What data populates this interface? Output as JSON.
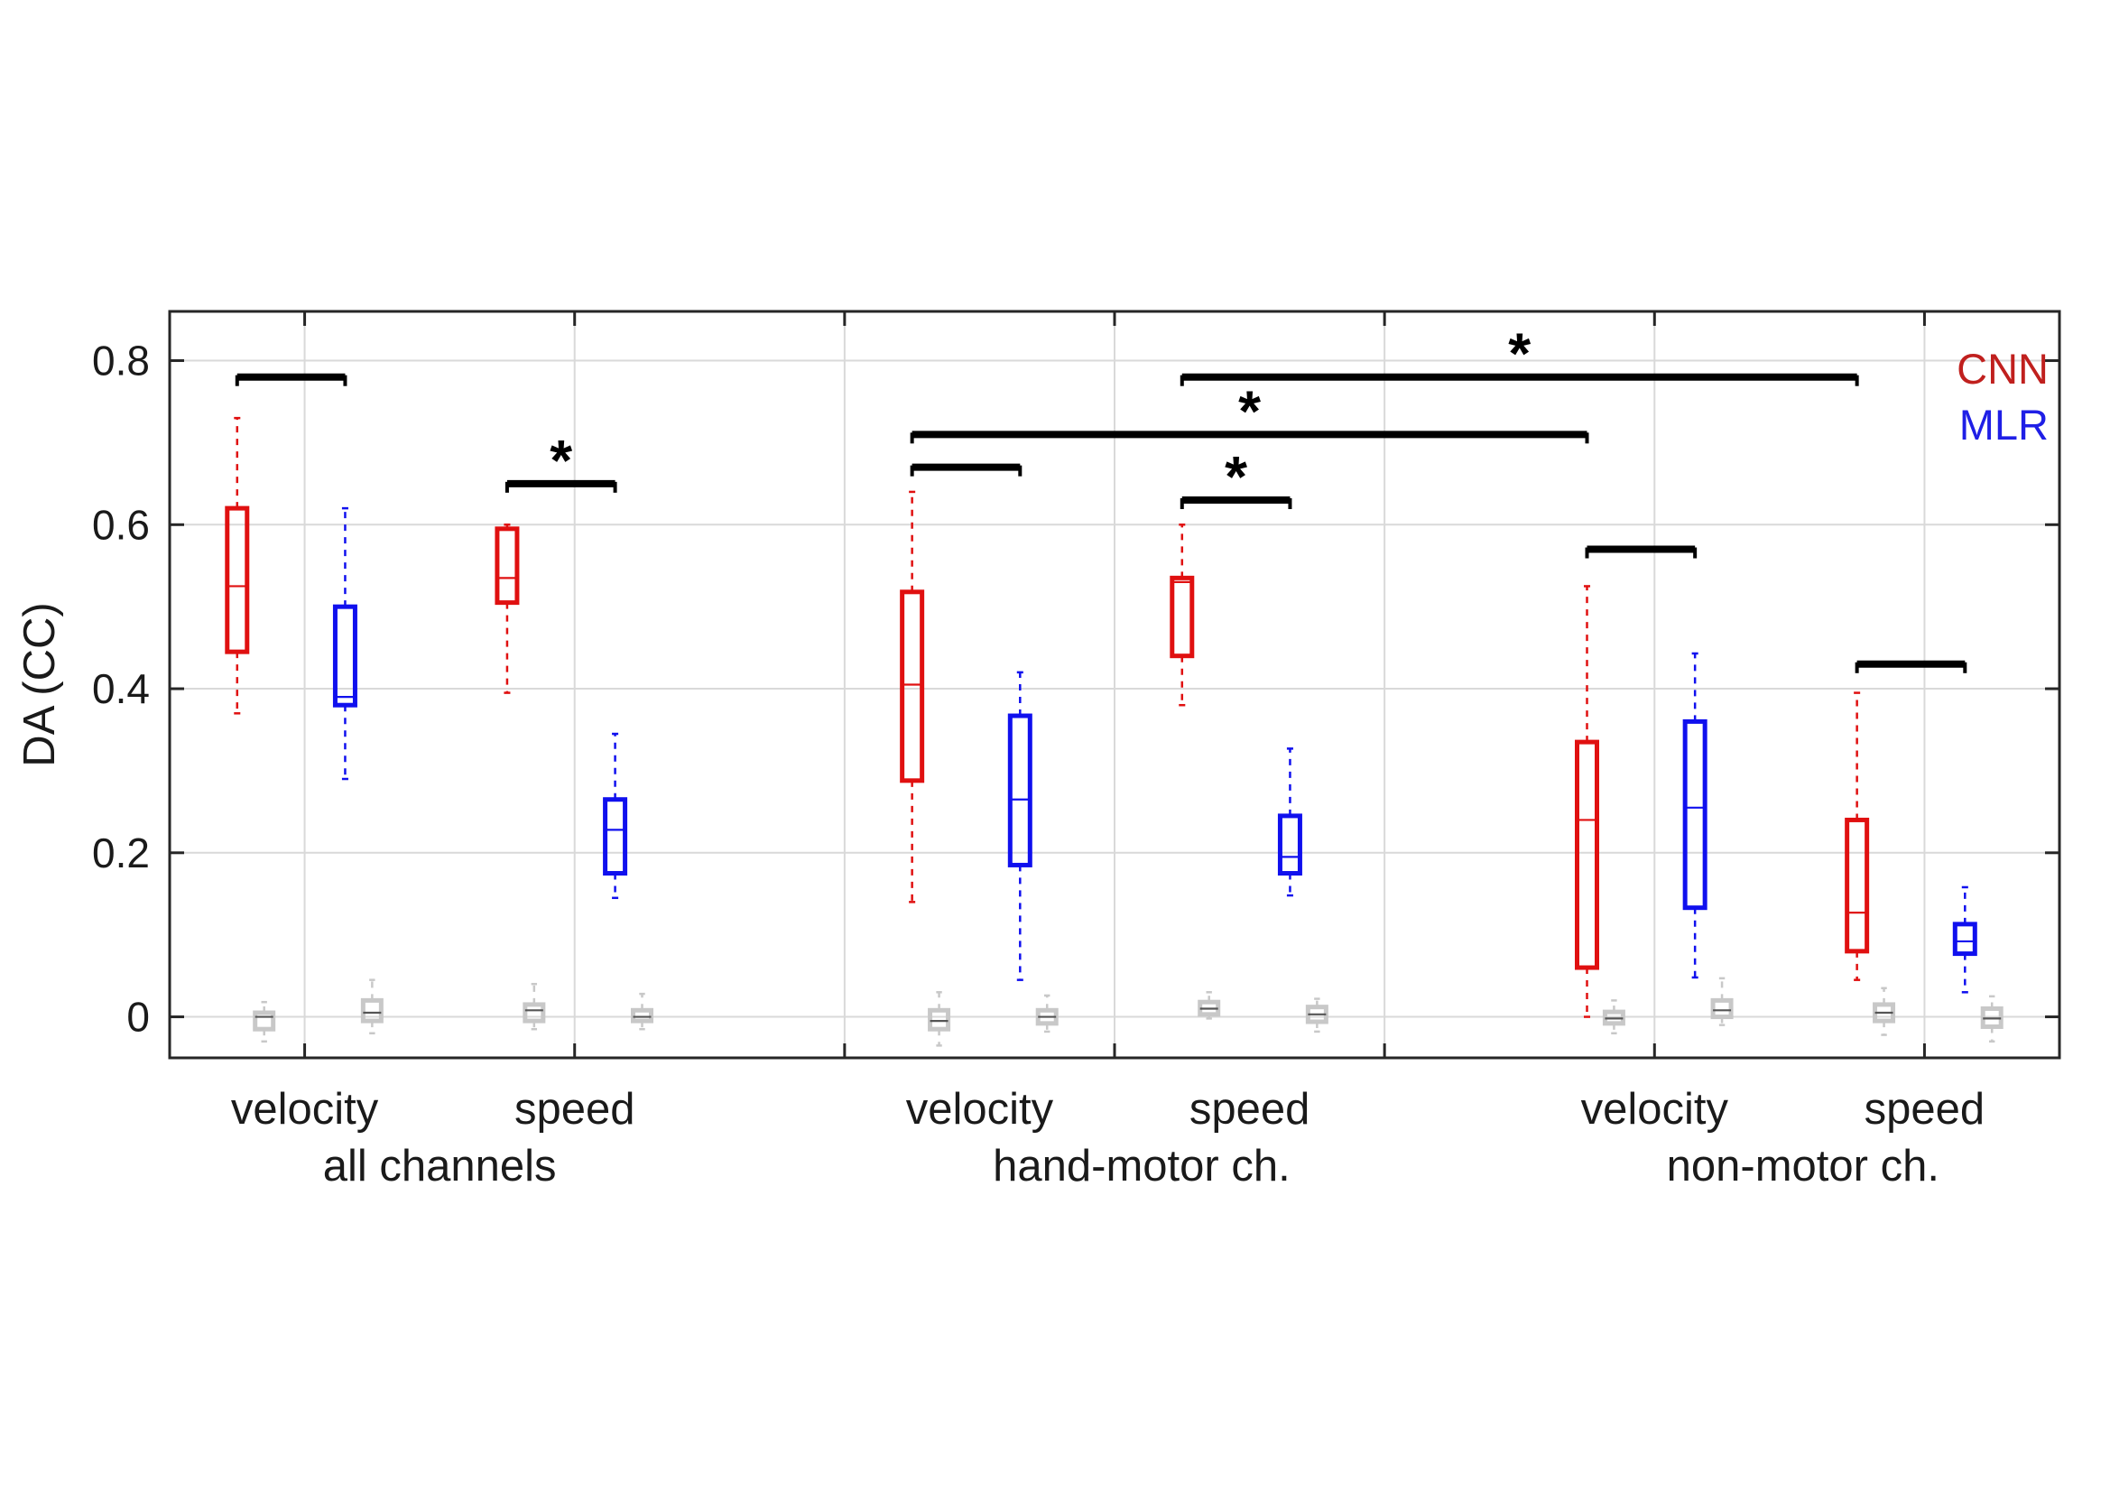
{
  "chart_data": {
    "type": "box",
    "ylabel": "DA (CC)",
    "ylim": [
      -0.05,
      0.86
    ],
    "yticks": [
      0,
      0.2,
      0.4,
      0.6,
      0.8
    ],
    "ytick_labels": [
      "0",
      "0.2",
      "0.4",
      "0.6",
      "0.8"
    ],
    "grid": true,
    "legend": {
      "placement": "top-right",
      "entries": [
        {
          "name": "CNN",
          "color": "#c0201e"
        },
        {
          "name": "MLR",
          "color": "#1f1fe6"
        }
      ]
    },
    "colors": {
      "CNN": "#e01010",
      "MLR": "#1010ee",
      "chance": "#c8c8c8",
      "bracket": "#000000"
    },
    "categories": [
      "velocity",
      "speed",
      "velocity",
      "speed",
      "velocity",
      "speed"
    ],
    "groups": [
      "all channels",
      "hand-motor ch.",
      "non-motor ch."
    ],
    "boxes": [
      {
        "x": 0.75,
        "series": "CNN",
        "whisker_low": 0.37,
        "q1": 0.445,
        "median": 0.525,
        "q3": 0.62,
        "whisker_high": 0.73
      },
      {
        "x": 1.15,
        "series": "MLR",
        "whisker_low": 0.29,
        "q1": 0.38,
        "median": 0.39,
        "q3": 0.5,
        "whisker_high": 0.62
      },
      {
        "x": 1.75,
        "series": "CNN",
        "whisker_low": 0.395,
        "q1": 0.505,
        "median": 0.535,
        "q3": 0.595,
        "whisker_high": 0.6
      },
      {
        "x": 2.15,
        "series": "MLR",
        "whisker_low": 0.145,
        "q1": 0.175,
        "median": 0.228,
        "q3": 0.265,
        "whisker_high": 0.345
      },
      {
        "x": 3.25,
        "series": "CNN",
        "whisker_low": 0.14,
        "q1": 0.288,
        "median": 0.405,
        "q3": 0.518,
        "whisker_high": 0.64
      },
      {
        "x": 3.65,
        "series": "MLR",
        "whisker_low": 0.045,
        "q1": 0.185,
        "median": 0.265,
        "q3": 0.367,
        "whisker_high": 0.42
      },
      {
        "x": 4.25,
        "series": "CNN",
        "whisker_low": 0.38,
        "q1": 0.44,
        "median": 0.53,
        "q3": 0.535,
        "whisker_high": 0.6
      },
      {
        "x": 4.65,
        "series": "MLR",
        "whisker_low": 0.148,
        "q1": 0.175,
        "median": 0.195,
        "q3": 0.245,
        "whisker_high": 0.327
      },
      {
        "x": 5.75,
        "series": "CNN",
        "whisker_low": 0.0,
        "q1": 0.06,
        "median": 0.24,
        "q3": 0.335,
        "whisker_high": 0.525
      },
      {
        "x": 6.15,
        "series": "MLR",
        "whisker_low": 0.048,
        "q1": 0.133,
        "median": 0.255,
        "q3": 0.36,
        "whisker_high": 0.443
      },
      {
        "x": 6.75,
        "series": "CNN",
        "whisker_low": 0.045,
        "q1": 0.08,
        "median": 0.127,
        "q3": 0.24,
        "whisker_high": 0.395
      },
      {
        "x": 7.15,
        "series": "MLR",
        "whisker_low": 0.03,
        "q1": 0.077,
        "median": 0.092,
        "q3": 0.113,
        "whisker_high": 0.158
      }
    ],
    "chance_boxes": [
      {
        "x": 0.85,
        "whisker_low": -0.03,
        "q1": -0.015,
        "median": 0.0,
        "q3": 0.005,
        "whisker_high": 0.018
      },
      {
        "x": 1.25,
        "whisker_low": -0.02,
        "q1": -0.005,
        "median": 0.005,
        "q3": 0.02,
        "whisker_high": 0.045
      },
      {
        "x": 1.85,
        "whisker_low": -0.015,
        "q1": -0.005,
        "median": 0.008,
        "q3": 0.015,
        "whisker_high": 0.04
      },
      {
        "x": 2.25,
        "whisker_low": -0.015,
        "q1": -0.005,
        "median": 0.0,
        "q3": 0.008,
        "whisker_high": 0.028
      },
      {
        "x": 3.35,
        "whisker_low": -0.035,
        "q1": -0.015,
        "median": -0.005,
        "q3": 0.008,
        "whisker_high": 0.03
      },
      {
        "x": 3.75,
        "whisker_low": -0.018,
        "q1": -0.008,
        "median": 0.0,
        "q3": 0.008,
        "whisker_high": 0.026
      },
      {
        "x": 4.35,
        "whisker_low": -0.002,
        "q1": 0.003,
        "median": 0.01,
        "q3": 0.018,
        "whisker_high": 0.03
      },
      {
        "x": 4.75,
        "whisker_low": -0.018,
        "q1": -0.006,
        "median": 0.003,
        "q3": 0.012,
        "whisker_high": 0.022
      },
      {
        "x": 5.85,
        "whisker_low": -0.02,
        "q1": -0.008,
        "median": -0.002,
        "q3": 0.006,
        "whisker_high": 0.02
      },
      {
        "x": 6.25,
        "whisker_low": -0.01,
        "q1": 0.0,
        "median": 0.008,
        "q3": 0.02,
        "whisker_high": 0.047
      },
      {
        "x": 6.85,
        "whisker_low": -0.022,
        "q1": -0.005,
        "median": 0.005,
        "q3": 0.015,
        "whisker_high": 0.035
      },
      {
        "x": 7.25,
        "whisker_low": -0.03,
        "q1": -0.012,
        "median": -0.002,
        "q3": 0.01,
        "whisker_high": 0.025
      }
    ],
    "brackets": [
      {
        "x1": 0.75,
        "x2": 1.15,
        "y": 0.78,
        "star": false
      },
      {
        "x1": 1.75,
        "x2": 2.15,
        "y": 0.65,
        "star": true,
        "label": "*"
      },
      {
        "x1": 3.25,
        "x2": 3.65,
        "y": 0.67,
        "star": false
      },
      {
        "x1": 4.25,
        "x2": 4.65,
        "y": 0.63,
        "star": true,
        "label": "*"
      },
      {
        "x1": 3.25,
        "x2": 5.75,
        "y": 0.71,
        "star": true,
        "label": "*"
      },
      {
        "x1": 4.25,
        "x2": 6.75,
        "y": 0.78,
        "star": true,
        "label": "*"
      },
      {
        "x1": 5.75,
        "x2": 6.15,
        "y": 0.57,
        "star": false
      },
      {
        "x1": 6.75,
        "x2": 7.15,
        "y": 0.43,
        "star": false
      }
    ]
  }
}
